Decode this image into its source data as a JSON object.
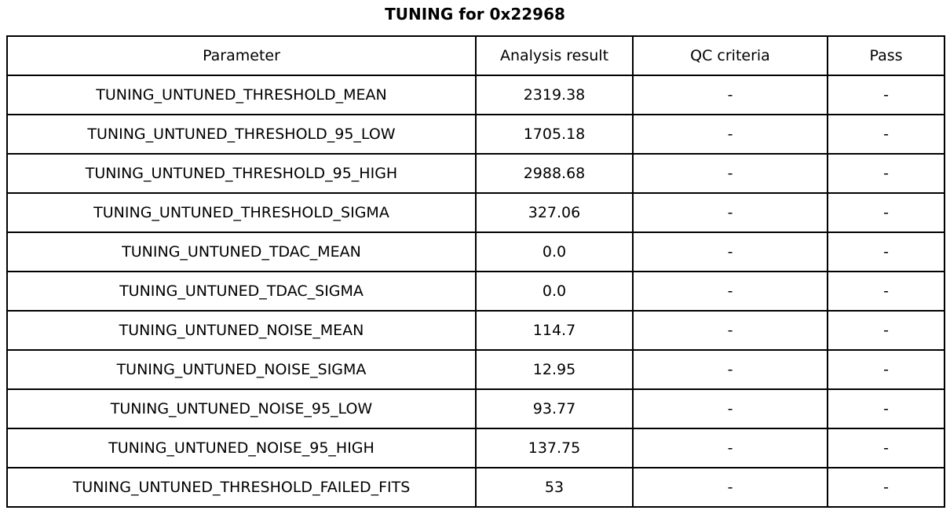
{
  "title": "TUNING for 0x22968",
  "colors": {
    "text": "#000000",
    "border": "#000000",
    "background": "#ffffff"
  },
  "chart_data": {
    "type": "table",
    "title": "TUNING for 0x22968",
    "columns": [
      "Parameter",
      "Analysis result",
      "QC criteria",
      "Pass"
    ],
    "rows": [
      [
        "TUNING_UNTUNED_THRESHOLD_MEAN",
        "2319.38",
        "-",
        "-"
      ],
      [
        "TUNING_UNTUNED_THRESHOLD_95_LOW",
        "1705.18",
        "-",
        "-"
      ],
      [
        "TUNING_UNTUNED_THRESHOLD_95_HIGH",
        "2988.68",
        "-",
        "-"
      ],
      [
        "TUNING_UNTUNED_THRESHOLD_SIGMA",
        "327.06",
        "-",
        "-"
      ],
      [
        "TUNING_UNTUNED_TDAC_MEAN",
        "0.0",
        "-",
        "-"
      ],
      [
        "TUNING_UNTUNED_TDAC_SIGMA",
        "0.0",
        "-",
        "-"
      ],
      [
        "TUNING_UNTUNED_NOISE_MEAN",
        "114.7",
        "-",
        "-"
      ],
      [
        "TUNING_UNTUNED_NOISE_SIGMA",
        "12.95",
        "-",
        "-"
      ],
      [
        "TUNING_UNTUNED_NOISE_95_LOW",
        "93.77",
        "-",
        "-"
      ],
      [
        "TUNING_UNTUNED_NOISE_95_HIGH",
        "137.75",
        "-",
        "-"
      ],
      [
        "TUNING_UNTUNED_THRESHOLD_FAILED_FITS",
        "53",
        "-",
        "-"
      ]
    ]
  }
}
